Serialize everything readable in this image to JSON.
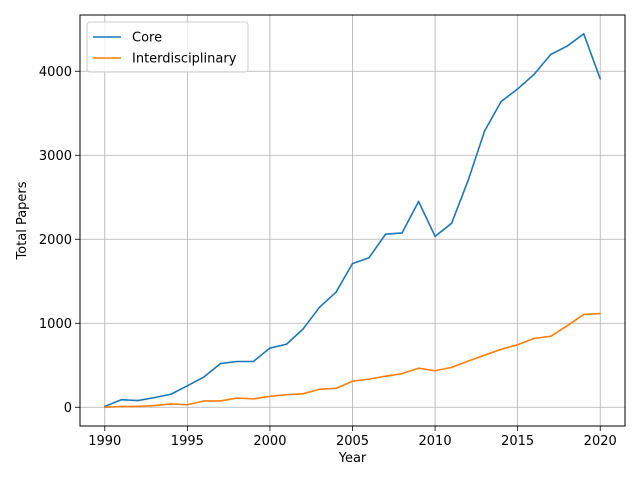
{
  "chart_data": {
    "type": "line",
    "title": "",
    "xlabel": "Year",
    "ylabel": "Total Papers",
    "xlim": [
      1988.5,
      2021.5
    ],
    "ylim": [
      -223,
      4670
    ],
    "xticks": [
      1990,
      1995,
      2000,
      2005,
      2010,
      2015,
      2020
    ],
    "yticks": [
      0,
      1000,
      2000,
      3000,
      4000
    ],
    "grid": true,
    "legend_position": "top-left",
    "x": [
      1990,
      1991,
      1992,
      1993,
      1994,
      1995,
      1996,
      1997,
      1998,
      1999,
      2000,
      2001,
      2002,
      2003,
      2004,
      2005,
      2006,
      2007,
      2008,
      2009,
      2010,
      2011,
      2012,
      2013,
      2014,
      2015,
      2016,
      2017,
      2018,
      2019,
      2020
    ],
    "series": [
      {
        "name": "Core",
        "color": "#1f77b4",
        "values": [
          10,
          90,
          80,
          115,
          155,
          255,
          360,
          520,
          545,
          545,
          705,
          750,
          930,
          1190,
          1370,
          1710,
          1780,
          2060,
          2075,
          2450,
          2035,
          2190,
          2700,
          3290,
          3640,
          3790,
          3965,
          4200,
          4300,
          4445,
          3910
        ]
      },
      {
        "name": "Interdisciplinary",
        "color": "#ff7f0e",
        "values": [
          0,
          10,
          10,
          20,
          40,
          30,
          75,
          75,
          110,
          100,
          130,
          150,
          160,
          215,
          225,
          310,
          335,
          370,
          400,
          465,
          435,
          475,
          550,
          620,
          690,
          745,
          820,
          845,
          970,
          1105,
          1115
        ]
      }
    ]
  }
}
